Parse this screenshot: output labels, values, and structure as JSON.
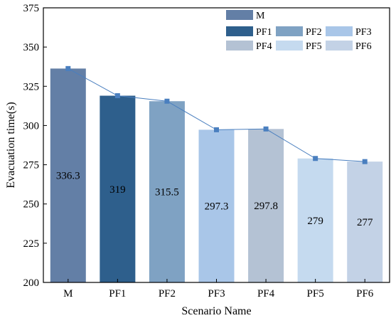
{
  "chart_data": {
    "type": "bar",
    "categories": [
      "M",
      "PF1",
      "PF2",
      "PF3",
      "PF4",
      "PF5",
      "PF6"
    ],
    "values": [
      336.3,
      319,
      315.5,
      297.3,
      297.8,
      279,
      277
    ],
    "value_labels": [
      "336.3",
      "319",
      "315.5",
      "297.3",
      "297.8",
      "279",
      "277"
    ],
    "colors": [
      "#637fa6",
      "#2e5f8c",
      "#7fa2c3",
      "#a9c6e8",
      "#b4c2d4",
      "#c5daef",
      "#c3d2e6"
    ],
    "line_color": "#4a7fbf",
    "title": "",
    "xlabel": "Scenario Name",
    "ylabel": "Evacuation time(s)",
    "ylim": [
      200,
      375
    ],
    "yticks": [
      200,
      225,
      250,
      275,
      300,
      325,
      350,
      375
    ],
    "grid": false,
    "legend": {
      "placement": "top-right",
      "entries": [
        "M",
        "PF1",
        "PF2",
        "PF3",
        "PF4",
        "PF5",
        "PF6"
      ]
    },
    "overlay": "line connecting bar tops with square markers"
  }
}
